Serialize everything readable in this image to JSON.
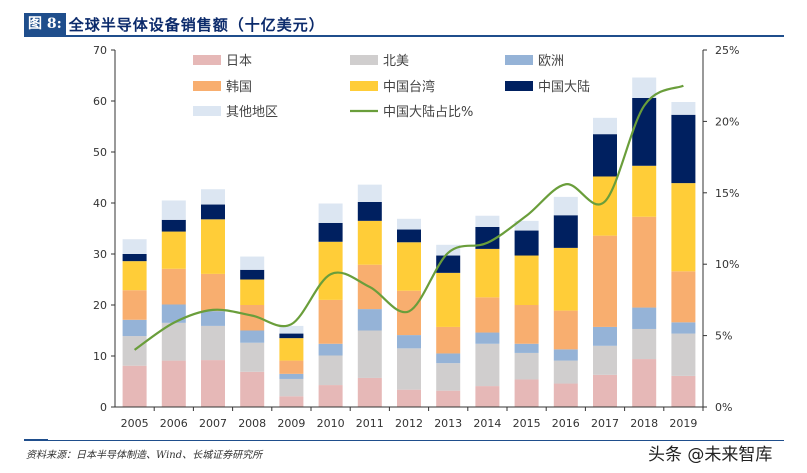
{
  "header": {
    "figure_label": "图 8:",
    "title": "全球半导体设备销售额（十亿美元）"
  },
  "footer": {
    "source": "资料来源：日本半导体制造、Wind、长城证券研究所",
    "watermark": "头条 @未来智库"
  },
  "chart_data": {
    "type": "bar",
    "stacked": true,
    "title": "全球半导体设备销售额（十亿美元）",
    "categories": [
      "2005",
      "2006",
      "2007",
      "2008",
      "2009",
      "2010",
      "2011",
      "2012",
      "2013",
      "2014",
      "2015",
      "2016",
      "2017",
      "2018",
      "2019"
    ],
    "ylim": [
      0,
      70
    ],
    "yticks": [
      0,
      10,
      20,
      30,
      40,
      50,
      60,
      70
    ],
    "y2lim": [
      0,
      25
    ],
    "y2ticks": [
      "0%",
      "5%",
      "10%",
      "15%",
      "20%",
      "25%"
    ],
    "y2tick_values": [
      0,
      5,
      10,
      15,
      20,
      25
    ],
    "legend_position": "top",
    "grid": false,
    "series": [
      {
        "name": "日本",
        "color": "#e6b8b7",
        "values": [
          8.1,
          9.1,
          9.2,
          6.9,
          2.1,
          4.3,
          5.7,
          3.4,
          3.2,
          4.1,
          5.4,
          4.6,
          6.3,
          9.4,
          6.1
        ]
      },
      {
        "name": "北美",
        "color": "#d0cece",
        "values": [
          5.8,
          7.4,
          6.7,
          5.7,
          3.4,
          5.8,
          9.3,
          8.1,
          5.4,
          8.3,
          5.2,
          4.5,
          5.7,
          5.9,
          8.3
        ]
      },
      {
        "name": "欧洲",
        "color": "#95b3d7",
        "values": [
          3.2,
          3.6,
          2.9,
          2.4,
          1.0,
          2.3,
          4.2,
          2.6,
          1.9,
          2.2,
          1.8,
          2.2,
          3.7,
          4.2,
          2.2
        ]
      },
      {
        "name": "韩国",
        "color": "#f8ae6f",
        "values": [
          5.8,
          7.0,
          7.3,
          5.0,
          2.6,
          8.6,
          8.7,
          8.7,
          5.2,
          6.9,
          7.6,
          7.6,
          17.9,
          17.8,
          10.0
        ]
      },
      {
        "name": "中国台湾",
        "color": "#ffcd38",
        "values": [
          5.7,
          7.3,
          10.7,
          5.0,
          4.4,
          11.4,
          8.6,
          9.5,
          10.6,
          9.5,
          9.7,
          12.3,
          11.6,
          10.0,
          17.3
        ]
      },
      {
        "name": "中国大陆",
        "color": "#002060",
        "values": [
          1.4,
          2.3,
          2.9,
          1.9,
          0.9,
          3.7,
          3.7,
          2.5,
          3.4,
          4.3,
          4.9,
          6.4,
          8.3,
          13.3,
          13.4
        ]
      },
      {
        "name": "其他地区",
        "color": "#dce6f2",
        "values": [
          2.9,
          3.8,
          3.0,
          2.6,
          1.5,
          3.8,
          3.4,
          2.1,
          2.1,
          2.2,
          1.9,
          3.6,
          3.2,
          4.0,
          2.5
        ]
      }
    ],
    "line_series": {
      "name": "中国大陆占比%",
      "color": "#6a9e3b",
      "axis": "right",
      "values": [
        4.0,
        5.9,
        6.8,
        6.4,
        5.8,
        9.3,
        8.4,
        6.7,
        10.8,
        11.5,
        13.4,
        15.6,
        14.4,
        21.1,
        22.5
      ]
    }
  }
}
